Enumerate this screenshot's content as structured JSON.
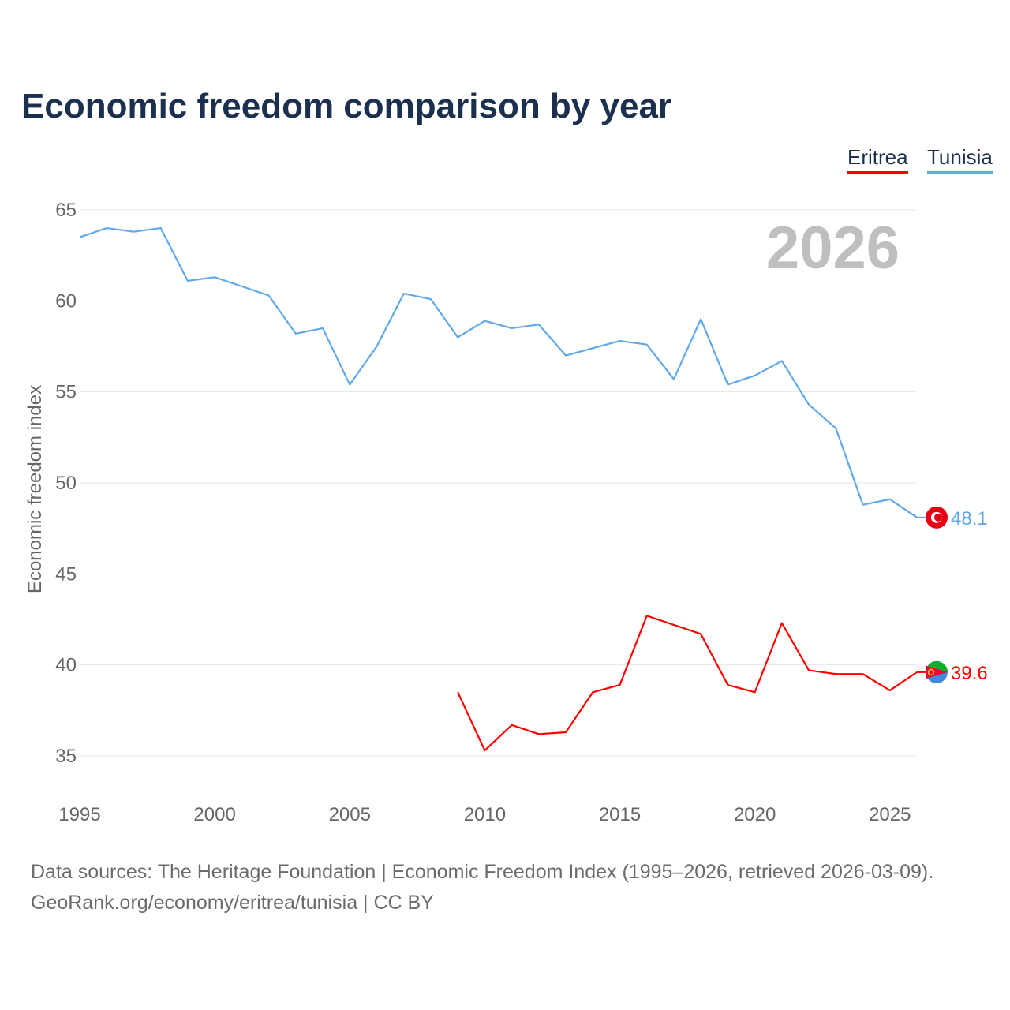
{
  "chart_data": {
    "type": "line",
    "title": "Economic freedom comparison by year",
    "xlabel": "",
    "ylabel": "Economic freedom index",
    "xlim": [
      1995,
      2026
    ],
    "ylim": [
      35,
      65
    ],
    "xticks": [
      1995,
      2000,
      2005,
      2010,
      2015,
      2020,
      2025
    ],
    "yticks": [
      35,
      40,
      45,
      50,
      55,
      60,
      65
    ],
    "grid": true,
    "legend_position": "top-right",
    "year_label": "2026",
    "series": [
      {
        "name": "Eritrea",
        "color": "#ff0000",
        "end_label": "39.6",
        "x": [
          2009,
          2010,
          2011,
          2012,
          2013,
          2014,
          2015,
          2016,
          2017,
          2018,
          2019,
          2020,
          2021,
          2022,
          2023,
          2024,
          2025,
          2026
        ],
        "values": [
          38.5,
          35.3,
          36.7,
          36.2,
          36.3,
          38.5,
          38.9,
          42.7,
          42.2,
          41.7,
          38.9,
          38.5,
          42.3,
          39.7,
          39.5,
          39.5,
          38.6,
          39.6
        ]
      },
      {
        "name": "Tunisia",
        "color": "#60a8ea",
        "end_label": "48.1",
        "x": [
          1995,
          1996,
          1997,
          1998,
          1999,
          2000,
          2001,
          2002,
          2003,
          2004,
          2005,
          2006,
          2007,
          2008,
          2009,
          2010,
          2011,
          2012,
          2013,
          2014,
          2015,
          2016,
          2017,
          2018,
          2019,
          2020,
          2021,
          2022,
          2023,
          2024,
          2025,
          2026
        ],
        "values": [
          63.5,
          64.0,
          63.8,
          64.0,
          61.1,
          61.3,
          60.8,
          60.3,
          58.2,
          58.5,
          55.4,
          57.5,
          60.4,
          60.1,
          58.0,
          58.9,
          58.5,
          58.7,
          57.0,
          57.4,
          57.8,
          57.6,
          55.7,
          59.0,
          55.4,
          55.9,
          56.7,
          54.3,
          53.0,
          48.8,
          49.1,
          48.1
        ]
      }
    ]
  },
  "source_line1": "Data sources: The Heritage Foundation | Economic Freedom Index (1995–2026, retrieved 2026-03-09).",
  "source_line2": "GeoRank.org/economy/eritrea/tunisia | CC BY"
}
